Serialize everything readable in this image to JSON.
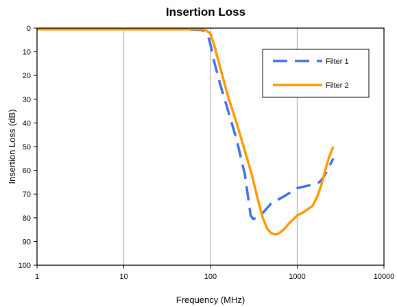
{
  "chart_data": {
    "type": "line",
    "title": "Insertion Loss",
    "xlabel": "Frequency (MHz)",
    "ylabel": "Insertion Loss (dB)",
    "x_scale": "log",
    "xlim": [
      1,
      10000
    ],
    "ylim": [
      0,
      100
    ],
    "y_inverted": true,
    "grid": "vertical major gridlines at decades",
    "legend_position": "top-right",
    "x_ticks": [
      "1",
      "10",
      "100",
      "1000",
      "10000"
    ],
    "y_ticks": [
      "0",
      "10",
      "20",
      "30",
      "40",
      "50",
      "60",
      "70",
      "80",
      "90",
      "100"
    ],
    "colors": {
      "Filter 1": "#3f6fee",
      "Filter 2": "#ff9a00"
    },
    "series": [
      {
        "name": "Filter 1",
        "style": "dashed",
        "x": [
          1,
          10,
          50,
          80,
          90,
          95,
          100,
          110,
          130,
          160,
          200,
          250,
          290,
          310,
          350,
          400,
          500,
          700,
          1000,
          1500,
          1800,
          2000,
          2300,
          2600
        ],
        "y": [
          0.5,
          0.5,
          0.5,
          0.8,
          2,
          4,
          7,
          14,
          24,
          35,
          47,
          62,
          79,
          80.5,
          80,
          78,
          74,
          71,
          67.5,
          66,
          65,
          63,
          59,
          55
        ]
      },
      {
        "name": "Filter 2",
        "style": "solid",
        "x": [
          1,
          10,
          50,
          80,
          90,
          100,
          110,
          130,
          160,
          200,
          250,
          300,
          350,
          400,
          450,
          500,
          550,
          600,
          700,
          800,
          1000,
          1200,
          1500,
          1700,
          1900,
          2100,
          2300,
          2600
        ],
        "y": [
          0.5,
          0.5,
          0.5,
          0.5,
          1,
          2.5,
          7,
          17,
          29,
          40,
          52,
          62,
          72,
          80,
          84.5,
          86.5,
          87,
          86.8,
          85,
          82.5,
          79,
          77.5,
          75,
          71,
          66,
          60,
          55,
          50
        ]
      }
    ]
  }
}
